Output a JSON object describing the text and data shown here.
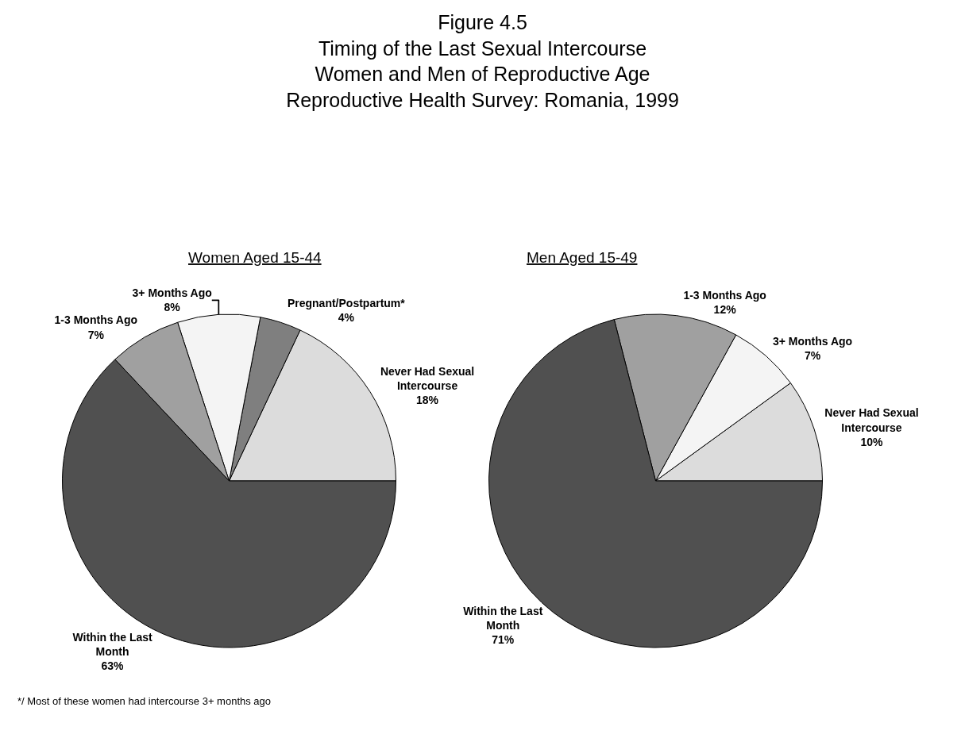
{
  "chart_data": [
    {
      "type": "pie",
      "title": "Figure 4.5\nTiming of the Last Sexual Intercourse\nWomen and Men of Reproductive Age\nReproductive Health Survey: Romania, 1999",
      "subtitle": "Women Aged 15-44",
      "annotations": [
        "*/ Most of these women had intercourse 3+ months ago"
      ],
      "categories": [
        "Never Had Sexual Intercourse",
        "Pregnant/Postpartum*",
        "3+ Months Ago",
        "1-3 Months Ago",
        "Within the Last Month"
      ],
      "values": [
        18,
        4,
        8,
        7,
        63
      ],
      "value_labels": [
        "18%",
        "4%",
        "8%",
        "7%",
        "63%"
      ],
      "colors": [
        "#dcdcdc",
        "#7f7f7f",
        "#f4f4f4",
        "#a0a0a0",
        "#505050"
      ],
      "legend": false
    },
    {
      "type": "pie",
      "subtitle": "Men Aged 15-49",
      "categories": [
        "Never Had Sexual Intercourse",
        "3+ Months Ago",
        "1-3 Months Ago",
        "Within the Last Month"
      ],
      "values": [
        10,
        7,
        12,
        71
      ],
      "value_labels": [
        "10%",
        "7%",
        "12%",
        "71%"
      ],
      "colors": [
        "#dcdcdc",
        "#f4f4f4",
        "#a0a0a0",
        "#505050"
      ],
      "legend": false
    }
  ]
}
